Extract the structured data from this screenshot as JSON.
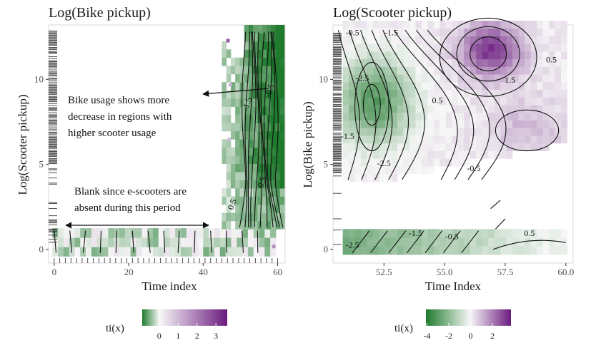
{
  "colors": {
    "low": "#1f7a2d",
    "mid": "#f7f7f7",
    "high": "#6a1a7e",
    "contour": "#111111",
    "annotation": "#111111"
  },
  "chart_data": [
    {
      "type": "heatmap",
      "title": "Log(Bike pickup)",
      "xlabel": "Time index",
      "ylabel": "Log(Scooter pickup)",
      "xlim": [
        -1.5,
        62
      ],
      "ylim": [
        -0.8,
        13.2
      ],
      "xticks": [
        0,
        20,
        40,
        60
      ],
      "yticks": [
        0,
        5,
        10
      ],
      "grid": false,
      "regions": [
        {
          "x": [
            -0.5,
            59.5
          ],
          "y": [
            -0.4,
            1.2
          ],
          "value": 0.2
        },
        {
          "x": [
            45,
            61
          ],
          "y": [
            1.2,
            13
          ],
          "value": -0.3
        }
      ],
      "contour_labels": [
        {
          "text": "-1.5",
          "x": 52.5,
          "y": 8.5
        },
        {
          "text": "-0.5",
          "x": 58.5,
          "y": 9.3
        },
        {
          "text": "0.5",
          "x": 56.5,
          "y": 3.9
        },
        {
          "text": "0.5",
          "x": 48.5,
          "y": 2.6
        }
      ],
      "annotations": [
        {
          "lines": [
            "Bike usage shows more",
            "decrease in regions with",
            "higher scooter usage"
          ]
        },
        {
          "lines": [
            "Blank since e-scooters are",
            "absent during this period"
          ]
        }
      ],
      "legend": {
        "title": "ti(x)",
        "ticks": [
          0,
          1,
          2,
          3
        ],
        "range": [
          -0.9,
          3.6
        ],
        "position": "bottom"
      }
    },
    {
      "type": "heatmap",
      "title": "Log(Scooter pickup)",
      "xlabel": "Time Index",
      "ylabel": "Log(Bike pickup)",
      "xlim": [
        50.4,
        60.3
      ],
      "ylim": [
        -0.8,
        13.2
      ],
      "xticks": [
        52.5,
        55.0,
        57.5,
        60.0
      ],
      "xtick_labels": [
        "52.5",
        "55.0",
        "57.5",
        "60.0"
      ],
      "yticks": [
        0,
        5,
        10
      ],
      "grid": false,
      "regions": [
        {
          "x": [
            50.8,
            60
          ],
          "y": [
            -0.3,
            1.2
          ],
          "value": -0.5
        },
        {
          "x": [
            50.8,
            60
          ],
          "y": [
            4.0,
            13.0
          ],
          "value": 0.3
        }
      ],
      "contour_labels": [
        {
          "text": "-0.5",
          "x": 51.2,
          "y": 12.6
        },
        {
          "text": "-1.5",
          "x": 52.8,
          "y": 12.6
        },
        {
          "text": "-2.5",
          "x": 51.6,
          "y": 9.9
        },
        {
          "text": "-1.5",
          "x": 51.0,
          "y": 6.5
        },
        {
          "text": "-2.5",
          "x": 52.5,
          "y": 4.9
        },
        {
          "text": "0.5",
          "x": 54.7,
          "y": 8.6
        },
        {
          "text": "1.5",
          "x": 57.7,
          "y": 9.8
        },
        {
          "text": "0.5",
          "x": 59.4,
          "y": 11.0
        },
        {
          "text": "-0.5",
          "x": 56.2,
          "y": 4.6
        },
        {
          "text": "-2.5",
          "x": 51.2,
          "y": 0.1
        },
        {
          "text": "-1.5",
          "x": 53.8,
          "y": 0.8
        },
        {
          "text": "-0.5",
          "x": 55.3,
          "y": 0.6
        },
        {
          "text": "0.5",
          "x": 58.5,
          "y": 0.8
        }
      ],
      "legend": {
        "title": "ti(x)",
        "ticks": [
          -4,
          -2,
          0,
          2
        ],
        "ticklabels": [
          "-4",
          "-2",
          "0",
          "2"
        ],
        "range": [
          -4.1,
          3.7
        ],
        "position": "bottom"
      }
    }
  ]
}
